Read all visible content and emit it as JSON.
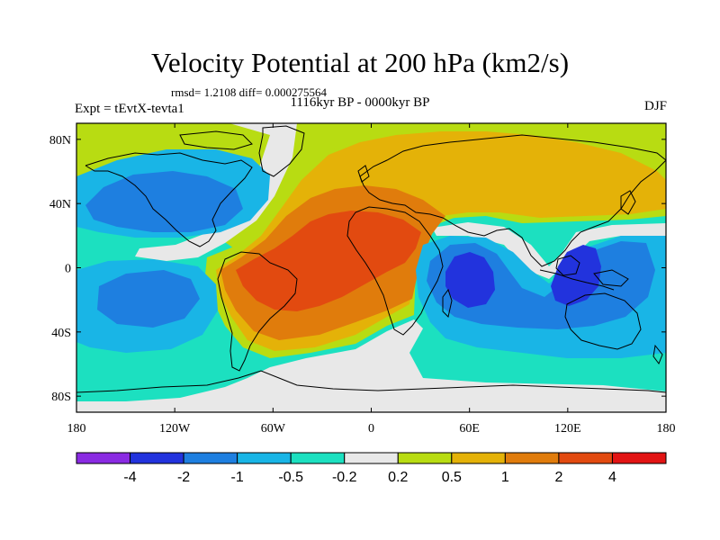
{
  "title": "Velocity Potential at 200 hPa (km2/s)",
  "stats_line": "rmsd= 1.2108 diff= 0.000275564",
  "period": "1116kyr BP - 0000kyr BP",
  "experiment": "Expt = tEvtX-tevta1",
  "season": "DJF",
  "map": {
    "projection": "cylindrical-equidistant",
    "lon_ticks": [
      {
        "value": -180,
        "label": "180"
      },
      {
        "value": -120,
        "label": "120W"
      },
      {
        "value": -60,
        "label": "60W"
      },
      {
        "value": 0,
        "label": "0"
      },
      {
        "value": 60,
        "label": "60E"
      },
      {
        "value": 120,
        "label": "120E"
      },
      {
        "value": 180,
        "label": "180"
      }
    ],
    "lat_ticks": [
      {
        "value": 80,
        "label": "80N"
      },
      {
        "value": 40,
        "label": "40N"
      },
      {
        "value": 0,
        "label": "0"
      },
      {
        "value": -40,
        "label": "40S"
      },
      {
        "value": -80,
        "label": "80S"
      }
    ]
  },
  "colorbar": {
    "colors": [
      "#8a2be2",
      "#2233dd",
      "#1e7fe0",
      "#19b5e6",
      "#1ce0c0",
      "#e8e8e8",
      "#b8dc12",
      "#e4b208",
      "#e07c0c",
      "#e24a10",
      "#e21414"
    ],
    "labels": [
      "-4",
      "-2",
      "-1",
      "-0.5",
      "-0.2",
      "0.2",
      "0.5",
      "1",
      "2",
      "4"
    ]
  },
  "chart_data": {
    "type": "heatmap",
    "title": "Velocity Potential at 200 hPa (km2/s)",
    "units": "km2/s",
    "levels": [
      -4,
      -2,
      -1,
      -0.5,
      -0.2,
      0.2,
      0.5,
      1,
      2,
      4
    ],
    "lon_range": [
      -180,
      180
    ],
    "lat_range": [
      -90,
      90
    ],
    "anomaly_centers": [
      {
        "lon": -58,
        "lat": -10,
        "value": 2.6
      },
      {
        "lon": -20,
        "lat": 18,
        "value": 2.2
      },
      {
        "lon": 42,
        "lat": 60,
        "value": 1.1
      },
      {
        "lon": 110,
        "lat": 45,
        "value": 0.9
      },
      {
        "lon": -5,
        "lat": -30,
        "value": 1.2
      },
      {
        "lon": -140,
        "lat": 38,
        "value": -1.4
      },
      {
        "lon": -140,
        "lat": -25,
        "value": -1.2
      },
      {
        "lon": 58,
        "lat": -8,
        "value": -3.6
      },
      {
        "lon": 125,
        "lat": -6,
        "value": -3.8
      },
      {
        "lon": 100,
        "lat": -45,
        "value": -0.8
      }
    ]
  }
}
